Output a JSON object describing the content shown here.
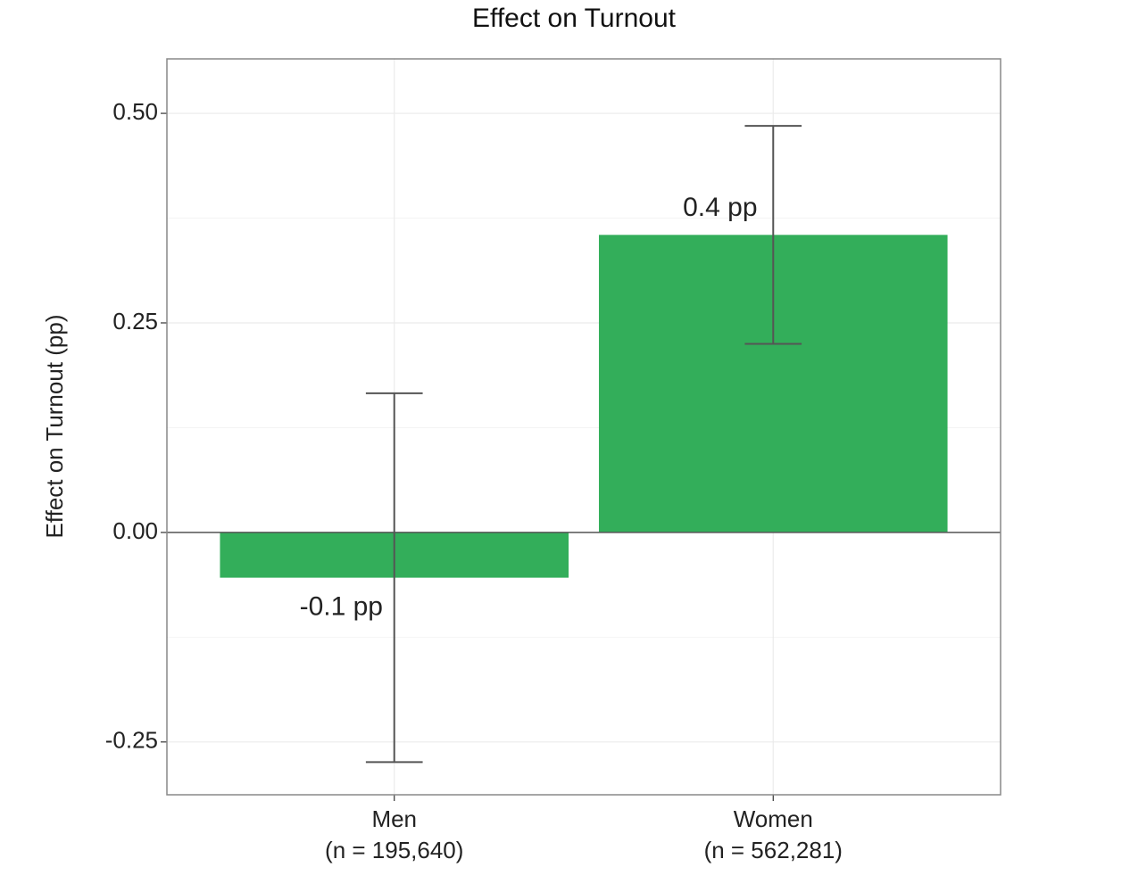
{
  "chart_data": {
    "type": "bar",
    "title": "Effect on Turnout",
    "y_label": "Effect on Turnout (pp)",
    "categories": [
      "Men",
      "Women"
    ],
    "category_notes": [
      "(n = 195,640)",
      "(n = 562,281)"
    ],
    "values": [
      -0.054,
      0.355
    ],
    "errors": [
      0.22,
      0.13
    ],
    "value_labels": [
      "-0.1 pp",
      "0.4 pp"
    ],
    "color": "#33ae5a",
    "ylim": [
      -0.313,
      0.565
    ],
    "yticks": [
      -0.25,
      {
        "value": 0,
        "label": "0.00"
      },
      0.25,
      {
        "value": 0.5,
        "label": "0.50"
      }
    ],
    "grid": true
  }
}
